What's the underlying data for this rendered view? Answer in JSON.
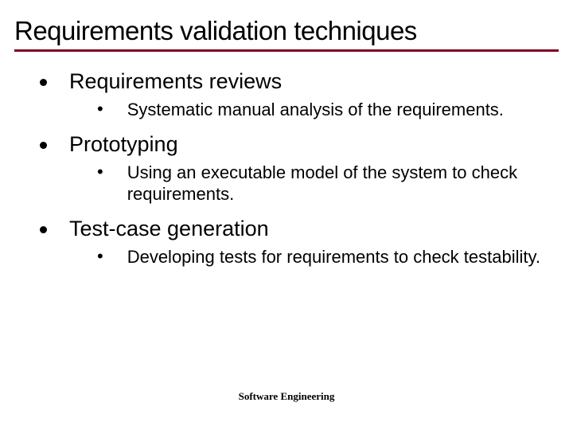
{
  "slide": {
    "title": "Requirements validation techniques",
    "footer": "Software Engineering",
    "title_rule_color": "#800020",
    "background_color": "#ffffff",
    "text_color": "#000000",
    "bullets": [
      {
        "label": "Requirements reviews",
        "sub": "Systematic manual analysis of the requirements."
      },
      {
        "label": "Prototyping",
        "sub": "Using an executable model of the system to check requirements."
      },
      {
        "label": "Test-case generation",
        "sub": "Developing tests for requirements to check testability."
      }
    ]
  },
  "typography": {
    "title_fontsize": 33,
    "l1_fontsize": 27,
    "l2_fontsize": 22,
    "footer_fontsize": 13,
    "font_family": "Arial, Helvetica, sans-serif",
    "footer_font_family": "Georgia, 'Times New Roman', serif"
  }
}
